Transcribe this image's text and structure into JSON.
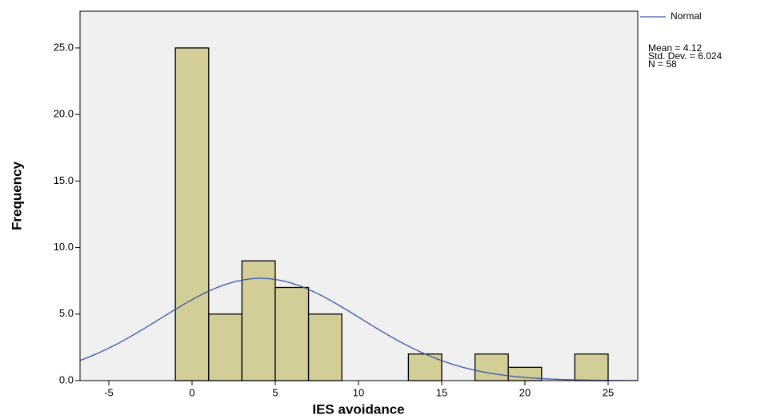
{
  "chart_data": {
    "type": "histogram",
    "x_label": "IES avoidance",
    "y_label": "Frequency",
    "bins": [
      -1,
      1,
      3,
      5,
      7,
      9,
      11,
      13,
      15,
      17,
      19,
      21,
      23,
      25
    ],
    "counts": [
      25,
      5,
      9,
      7,
      5,
      0,
      0,
      2,
      0,
      2,
      1,
      0,
      2
    ],
    "color": "#d3ce97",
    "xlim": [
      -6.73,
      26.78
    ],
    "xticks": [
      -5,
      0,
      5,
      10,
      15,
      20,
      25
    ],
    "ylim": [
      0,
      27.76
    ],
    "yticks": [
      {
        "value": 0,
        "label": "0.0"
      },
      {
        "value": 5,
        "label": "5.0"
      },
      {
        "value": 10,
        "label": "10.0"
      },
      {
        "value": 15,
        "label": "15.0"
      },
      {
        "value": 20,
        "label": "20.0"
      },
      {
        "value": 25,
        "label": "25.0"
      }
    ],
    "curve": {
      "name": "Normal",
      "color": "#3a57a8",
      "mean": {
        "value": 4.12,
        "label": "Mean = 4.12"
      },
      "sd": {
        "value": 6.024,
        "label": "Std. Dev. = 6.024"
      },
      "n": {
        "value": 58,
        "label": "N = 58"
      }
    },
    "background": "#f0f0f0"
  }
}
